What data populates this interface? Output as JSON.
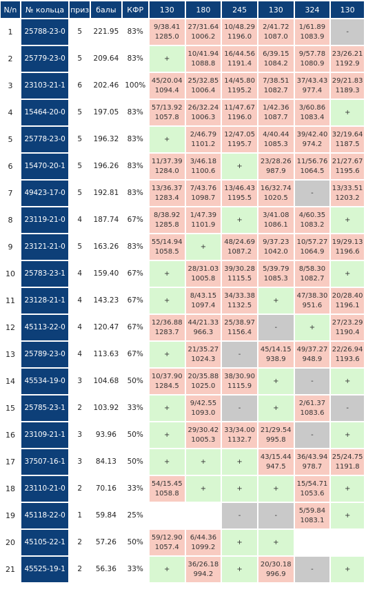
{
  "headers": [
    "N/n",
    "№ кольца",
    "приз",
    "балы",
    "КФР",
    "130",
    "180",
    "245",
    "130",
    "324",
    "130"
  ],
  "rows": [
    {
      "n": "1",
      "ring": "25788-23-0",
      "priz": "5",
      "ball": "221.95",
      "kfr": "83%",
      "cells": [
        {
          "s": "red",
          "l1": "9/38.41",
          "l2": "1285.0"
        },
        {
          "s": "red",
          "l1": "27/31.64",
          "l2": "1006.2"
        },
        {
          "s": "red",
          "l1": "10/48.29",
          "l2": "1196.0"
        },
        {
          "s": "red",
          "l1": "2/41.72",
          "l2": "1087.0"
        },
        {
          "s": "red",
          "l1": "1/61.89",
          "l2": "1083.9"
        },
        {
          "s": "gray",
          "l1": "-",
          "l2": ""
        }
      ]
    },
    {
      "n": "2",
      "ring": "25779-23-0",
      "priz": "5",
      "ball": "209.64",
      "kfr": "83%",
      "cells": [
        {
          "s": "green",
          "l1": "+",
          "l2": ""
        },
        {
          "s": "red",
          "l1": "10/41.94",
          "l2": "1088.8"
        },
        {
          "s": "red",
          "l1": "16/44.56",
          "l2": "1191.4"
        },
        {
          "s": "red",
          "l1": "6/39.15",
          "l2": "1084.2"
        },
        {
          "s": "red",
          "l1": "9/57.78",
          "l2": "1080.9"
        },
        {
          "s": "red",
          "l1": "23/26.21",
          "l2": "1192.9"
        }
      ]
    },
    {
      "n": "3",
      "ring": "23103-21-1",
      "priz": "6",
      "ball": "202.46",
      "kfr": "100%",
      "cells": [
        {
          "s": "red",
          "l1": "45/20.04",
          "l2": "1094.4"
        },
        {
          "s": "red",
          "l1": "25/32.85",
          "l2": "1006.4"
        },
        {
          "s": "red",
          "l1": "14/45.80",
          "l2": "1195.2"
        },
        {
          "s": "red",
          "l1": "7/38.51",
          "l2": "1082.7"
        },
        {
          "s": "red",
          "l1": "37/43.43",
          "l2": "977.4"
        },
        {
          "s": "red",
          "l1": "29/21.83",
          "l2": "1189.3"
        }
      ]
    },
    {
      "n": "4",
      "ring": "15464-20-0",
      "priz": "5",
      "ball": "197.05",
      "kfr": "83%",
      "cells": [
        {
          "s": "red",
          "l1": "57/13.92",
          "l2": "1057.8"
        },
        {
          "s": "red",
          "l1": "26/32.24",
          "l2": "1006.3"
        },
        {
          "s": "red",
          "l1": "11/47.67",
          "l2": "1196.0"
        },
        {
          "s": "red",
          "l1": "1/42.36",
          "l2": "1087.7"
        },
        {
          "s": "red",
          "l1": "3/60.86",
          "l2": "1083.4"
        },
        {
          "s": "green",
          "l1": "+",
          "l2": ""
        }
      ]
    },
    {
      "n": "5",
      "ring": "25778-23-0",
      "priz": "5",
      "ball": "196.32",
      "kfr": "83%",
      "cells": [
        {
          "s": "green",
          "l1": "+",
          "l2": ""
        },
        {
          "s": "red",
          "l1": "2/46.79",
          "l2": "1101.2"
        },
        {
          "s": "red",
          "l1": "12/47.05",
          "l2": "1195.7"
        },
        {
          "s": "red",
          "l1": "4/40.44",
          "l2": "1085.3"
        },
        {
          "s": "red",
          "l1": "39/42.40",
          "l2": "974.2"
        },
        {
          "s": "red",
          "l1": "32/19.64",
          "l2": "1187.5"
        }
      ]
    },
    {
      "n": "6",
      "ring": "15470-20-1",
      "priz": "5",
      "ball": "196.26",
      "kfr": "83%",
      "cells": [
        {
          "s": "red",
          "l1": "11/37.39",
          "l2": "1284.0"
        },
        {
          "s": "red",
          "l1": "3/46.18",
          "l2": "1100.6"
        },
        {
          "s": "green",
          "l1": "+",
          "l2": ""
        },
        {
          "s": "red",
          "l1": "23/28.26",
          "l2": "987.9"
        },
        {
          "s": "red",
          "l1": "11/56.76",
          "l2": "1064.5"
        },
        {
          "s": "red",
          "l1": "21/27.67",
          "l2": "1195.6"
        }
      ]
    },
    {
      "n": "7",
      "ring": "49423-17-0",
      "priz": "5",
      "ball": "192.81",
      "kfr": "83%",
      "cells": [
        {
          "s": "red",
          "l1": "13/36.37",
          "l2": "1283.4"
        },
        {
          "s": "red",
          "l1": "7/43.76",
          "l2": "1098.7"
        },
        {
          "s": "red",
          "l1": "13/46.43",
          "l2": "1195.5"
        },
        {
          "s": "red",
          "l1": "16/32.74",
          "l2": "1020.5"
        },
        {
          "s": "gray",
          "l1": "-",
          "l2": ""
        },
        {
          "s": "red",
          "l1": "13/33.51",
          "l2": "1203.2"
        }
      ]
    },
    {
      "n": "8",
      "ring": "23119-21-0",
      "priz": "4",
      "ball": "187.74",
      "kfr": "67%",
      "cells": [
        {
          "s": "red",
          "l1": "8/38.92",
          "l2": "1285.8"
        },
        {
          "s": "red",
          "l1": "1/47.39",
          "l2": "1101.9"
        },
        {
          "s": "green",
          "l1": "+",
          "l2": ""
        },
        {
          "s": "red",
          "l1": "3/41.08",
          "l2": "1086.1"
        },
        {
          "s": "red",
          "l1": "4/60.35",
          "l2": "1083.2"
        },
        {
          "s": "green",
          "l1": "+",
          "l2": ""
        }
      ]
    },
    {
      "n": "9",
      "ring": "23121-21-0",
      "priz": "5",
      "ball": "163.26",
      "kfr": "83%",
      "cells": [
        {
          "s": "red",
          "l1": "55/14.94",
          "l2": "1058.5"
        },
        {
          "s": "green",
          "l1": "+",
          "l2": ""
        },
        {
          "s": "red",
          "l1": "48/24.69",
          "l2": "1087.2"
        },
        {
          "s": "red",
          "l1": "9/37.23",
          "l2": "1042.0"
        },
        {
          "s": "red",
          "l1": "10/57.27",
          "l2": "1064.9"
        },
        {
          "s": "red",
          "l1": "19/29.13",
          "l2": "1196.6"
        }
      ]
    },
    {
      "n": "10",
      "ring": "25783-23-1",
      "priz": "4",
      "ball": "159.40",
      "kfr": "67%",
      "cells": [
        {
          "s": "green",
          "l1": "+",
          "l2": ""
        },
        {
          "s": "red",
          "l1": "28/31.03",
          "l2": "1005.8"
        },
        {
          "s": "red",
          "l1": "39/30.28",
          "l2": "1115.5"
        },
        {
          "s": "red",
          "l1": "5/39.79",
          "l2": "1085.3"
        },
        {
          "s": "red",
          "l1": "8/58.30",
          "l2": "1082.7"
        },
        {
          "s": "green",
          "l1": "+",
          "l2": ""
        }
      ]
    },
    {
      "n": "11",
      "ring": "23128-21-1",
      "priz": "4",
      "ball": "143.23",
      "kfr": "67%",
      "cells": [
        {
          "s": "green",
          "l1": "+",
          "l2": ""
        },
        {
          "s": "red",
          "l1": "8/43.15",
          "l2": "1097.4"
        },
        {
          "s": "red",
          "l1": "34/33.38",
          "l2": "1132.5"
        },
        {
          "s": "green",
          "l1": "+",
          "l2": ""
        },
        {
          "s": "red",
          "l1": "47/38.30",
          "l2": "951.6"
        },
        {
          "s": "red",
          "l1": "20/28.40",
          "l2": "1196.1"
        }
      ]
    },
    {
      "n": "12",
      "ring": "45113-22-0",
      "priz": "4",
      "ball": "120.47",
      "kfr": "67%",
      "cells": [
        {
          "s": "red",
          "l1": "12/36.88",
          "l2": "1283.7"
        },
        {
          "s": "red",
          "l1": "44/21.33",
          "l2": "966.3"
        },
        {
          "s": "red",
          "l1": "25/38.97",
          "l2": "1156.4"
        },
        {
          "s": "gray",
          "l1": "-",
          "l2": ""
        },
        {
          "s": "green",
          "l1": "+",
          "l2": ""
        },
        {
          "s": "red",
          "l1": "27/23.29",
          "l2": "1190.4"
        }
      ]
    },
    {
      "n": "13",
      "ring": "25789-23-0",
      "priz": "4",
      "ball": "113.63",
      "kfr": "67%",
      "cells": [
        {
          "s": "green",
          "l1": "+",
          "l2": ""
        },
        {
          "s": "red",
          "l1": "21/35.27",
          "l2": "1024.3"
        },
        {
          "s": "gray",
          "l1": "-",
          "l2": ""
        },
        {
          "s": "red",
          "l1": "45/14.15",
          "l2": "938.9"
        },
        {
          "s": "red",
          "l1": "49/37.27",
          "l2": "948.9"
        },
        {
          "s": "red",
          "l1": "22/26.94",
          "l2": "1193.6"
        }
      ]
    },
    {
      "n": "14",
      "ring": "45534-19-0",
      "priz": "3",
      "ball": "104.68",
      "kfr": "50%",
      "cells": [
        {
          "s": "red",
          "l1": "10/37.90",
          "l2": "1284.5"
        },
        {
          "s": "red",
          "l1": "20/35.88",
          "l2": "1025.0"
        },
        {
          "s": "red",
          "l1": "38/30.90",
          "l2": "1115.9"
        },
        {
          "s": "green",
          "l1": "+",
          "l2": ""
        },
        {
          "s": "gray",
          "l1": "-",
          "l2": ""
        },
        {
          "s": "green",
          "l1": "+",
          "l2": ""
        }
      ]
    },
    {
      "n": "15",
      "ring": "25785-23-1",
      "priz": "2",
      "ball": "103.92",
      "kfr": "33%",
      "cells": [
        {
          "s": "green",
          "l1": "+",
          "l2": ""
        },
        {
          "s": "red",
          "l1": "9/42.55",
          "l2": "1093.0"
        },
        {
          "s": "gray",
          "l1": "-",
          "l2": ""
        },
        {
          "s": "green",
          "l1": "+",
          "l2": ""
        },
        {
          "s": "red",
          "l1": "2/61.37",
          "l2": "1083.6"
        },
        {
          "s": "gray",
          "l1": "-",
          "l2": ""
        }
      ]
    },
    {
      "n": "16",
      "ring": "23109-21-1",
      "priz": "3",
      "ball": "93.96",
      "kfr": "50%",
      "cells": [
        {
          "s": "green",
          "l1": "+",
          "l2": ""
        },
        {
          "s": "red",
          "l1": "29/30.42",
          "l2": "1005.3"
        },
        {
          "s": "red",
          "l1": "33/34.00",
          "l2": "1132.7"
        },
        {
          "s": "red",
          "l1": "21/29.54",
          "l2": "995.8"
        },
        {
          "s": "gray",
          "l1": "-",
          "l2": ""
        },
        {
          "s": "green",
          "l1": "+",
          "l2": ""
        }
      ]
    },
    {
      "n": "17",
      "ring": "37507-16-1",
      "priz": "3",
      "ball": "84.13",
      "kfr": "50%",
      "cells": [
        {
          "s": "green",
          "l1": "+",
          "l2": ""
        },
        {
          "s": "green",
          "l1": "+",
          "l2": ""
        },
        {
          "s": "green",
          "l1": "+",
          "l2": ""
        },
        {
          "s": "red",
          "l1": "43/15.44",
          "l2": "947.5"
        },
        {
          "s": "red",
          "l1": "36/43.94",
          "l2": "978.7"
        },
        {
          "s": "red",
          "l1": "25/24.75",
          "l2": "1191.8"
        }
      ]
    },
    {
      "n": "18",
      "ring": "23110-21-0",
      "priz": "2",
      "ball": "70.16",
      "kfr": "33%",
      "cells": [
        {
          "s": "red",
          "l1": "54/15.45",
          "l2": "1058.8"
        },
        {
          "s": "green",
          "l1": "+",
          "l2": ""
        },
        {
          "s": "green",
          "l1": "+",
          "l2": ""
        },
        {
          "s": "green",
          "l1": "+",
          "l2": ""
        },
        {
          "s": "red",
          "l1": "15/54.71",
          "l2": "1053.6"
        },
        {
          "s": "green",
          "l1": "+",
          "l2": ""
        }
      ]
    },
    {
      "n": "19",
      "ring": "45118-22-0",
      "priz": "1",
      "ball": "59.84",
      "kfr": "25%",
      "cells": [
        {
          "s": "empty",
          "l1": "",
          "l2": ""
        },
        {
          "s": "empty",
          "l1": "",
          "l2": ""
        },
        {
          "s": "gray",
          "l1": "-",
          "l2": ""
        },
        {
          "s": "gray",
          "l1": "-",
          "l2": ""
        },
        {
          "s": "red",
          "l1": "5/59.84",
          "l2": "1083.1"
        },
        {
          "s": "green",
          "l1": "+",
          "l2": ""
        }
      ]
    },
    {
      "n": "20",
      "ring": "45105-22-1",
      "priz": "2",
      "ball": "57.26",
      "kfr": "50%",
      "cells": [
        {
          "s": "red",
          "l1": "59/12.90",
          "l2": "1057.4"
        },
        {
          "s": "red",
          "l1": "6/44.36",
          "l2": "1099.2"
        },
        {
          "s": "green",
          "l1": "+",
          "l2": ""
        },
        {
          "s": "green",
          "l1": "+",
          "l2": ""
        },
        {
          "s": "empty",
          "l1": "",
          "l2": ""
        },
        {
          "s": "empty",
          "l1": "",
          "l2": ""
        }
      ]
    },
    {
      "n": "21",
      "ring": "45525-19-1",
      "priz": "2",
      "ball": "56.36",
      "kfr": "33%",
      "cells": [
        {
          "s": "green",
          "l1": "+",
          "l2": ""
        },
        {
          "s": "red",
          "l1": "36/26.18",
          "l2": "994.2"
        },
        {
          "s": "green",
          "l1": "+",
          "l2": ""
        },
        {
          "s": "red",
          "l1": "20/30.18",
          "l2": "996.9"
        },
        {
          "s": "gray",
          "l1": "-",
          "l2": ""
        },
        {
          "s": "green",
          "l1": "+",
          "l2": ""
        }
      ]
    }
  ]
}
